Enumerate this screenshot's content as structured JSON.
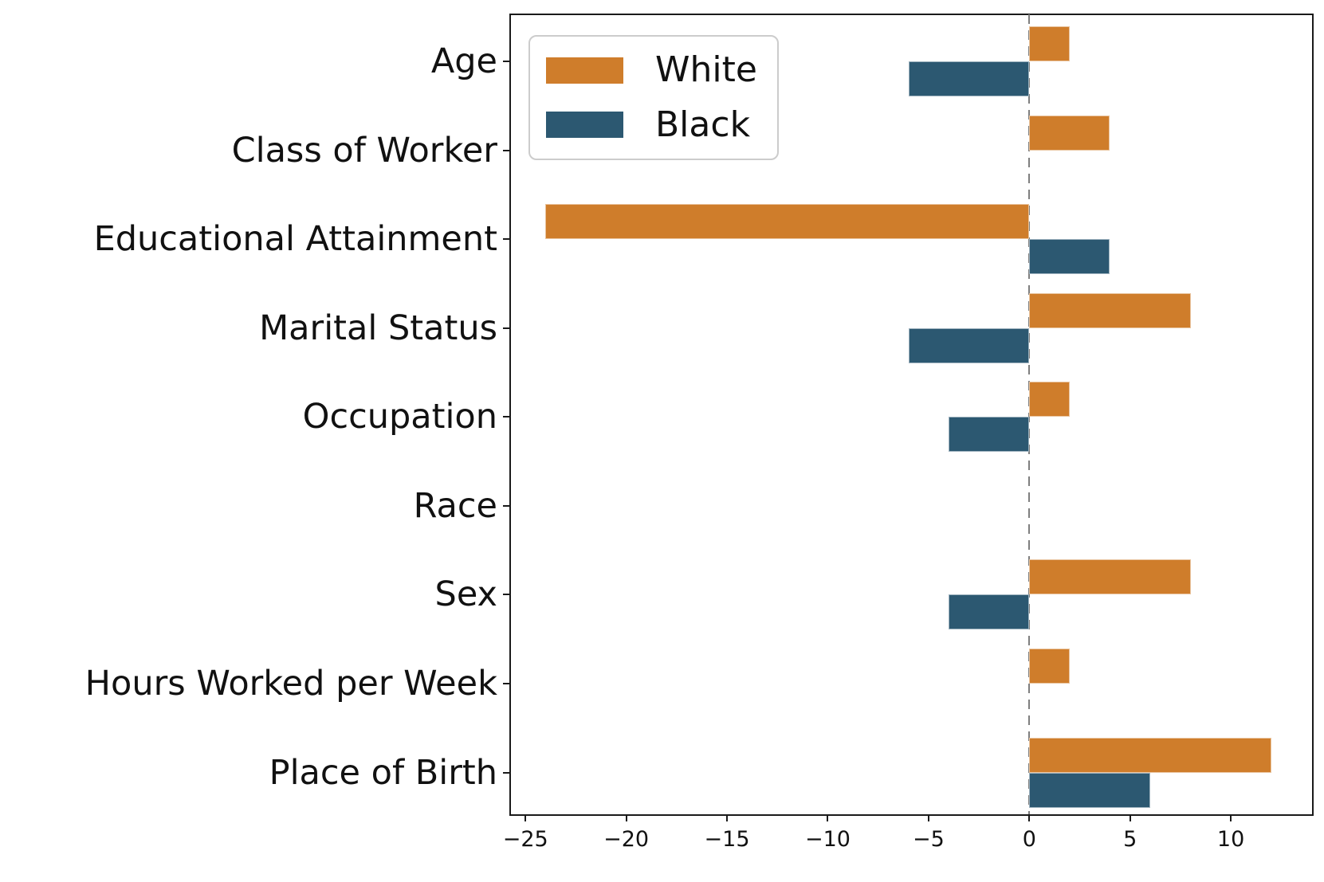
{
  "chart_data": {
    "type": "bar",
    "orientation": "horizontal",
    "title": "",
    "xlabel": "",
    "ylabel": "",
    "grid": false,
    "zero_line_dashed": true,
    "legend_position": "upper left",
    "categories": [
      "Age",
      "Class of Worker",
      "Educational Attainment",
      "Marital Status",
      "Occupation",
      "Race",
      "Sex",
      "Hours Worked per Week",
      "Place of Birth"
    ],
    "series": [
      {
        "name": "White",
        "color": "#CF7D2B",
        "values": [
          2,
          4,
          -24,
          8,
          2,
          0,
          8,
          2,
          12
        ]
      },
      {
        "name": "Black",
        "color": "#2C5871",
        "values": [
          -6,
          0,
          4,
          -6,
          -4,
          0,
          -4,
          0,
          6
        ]
      }
    ],
    "xlim": [
      -25.76,
      14.03
    ],
    "xticks": [
      -25,
      -20,
      -15,
      -10,
      -5,
      0,
      5,
      10
    ],
    "xtick_labels": [
      "−25",
      "−20",
      "−15",
      "−10",
      "−5",
      "0",
      "5",
      "10"
    ]
  },
  "legend": {
    "items": [
      {
        "label": "White"
      },
      {
        "label": "Black"
      }
    ]
  },
  "colors": {
    "axis": "#1a1a1a",
    "zero_line": "#7f7f7f",
    "background": "#ffffff"
  }
}
